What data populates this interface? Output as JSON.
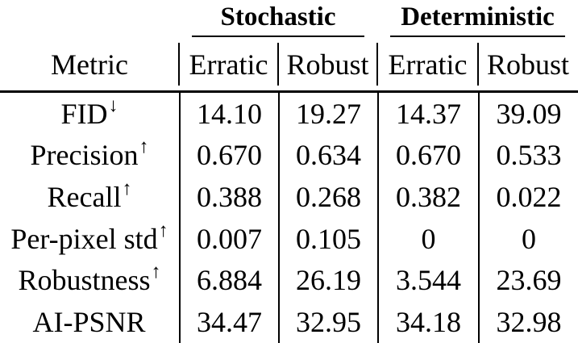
{
  "table": {
    "group_headers": [
      {
        "label": "Stochastic"
      },
      {
        "label": "Deterministic"
      }
    ],
    "column_headers": {
      "metric": "Metric",
      "cols": [
        "Erratic",
        "Robust",
        "Erratic",
        "Robust"
      ]
    },
    "rows": [
      {
        "metric": "FID",
        "arrow": "↓",
        "values": [
          "14.10",
          "19.27",
          "14.37",
          "39.09"
        ]
      },
      {
        "metric": "Precision",
        "arrow": "↑",
        "values": [
          "0.670",
          "0.634",
          "0.670",
          "0.533"
        ]
      },
      {
        "metric": "Recall",
        "arrow": "↑",
        "values": [
          "0.388",
          "0.268",
          "0.382",
          "0.022"
        ]
      },
      {
        "metric": "Per-pixel std",
        "arrow": "↑",
        "values": [
          "0.007",
          "0.105",
          "0",
          "0"
        ]
      },
      {
        "metric": "Robustness",
        "arrow": "↑",
        "values": [
          "6.884",
          "26.19",
          "3.544",
          "23.69"
        ]
      },
      {
        "metric": "AI-PSNR",
        "arrow": "",
        "values": [
          "34.47",
          "32.95",
          "34.18",
          "32.98"
        ]
      }
    ],
    "colors": {
      "text": "#000000",
      "background": "#ffffff",
      "rule": "#000000"
    }
  }
}
